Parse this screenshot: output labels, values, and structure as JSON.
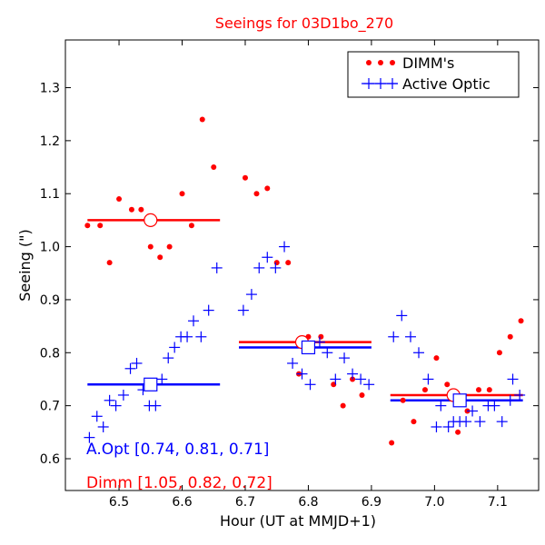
{
  "chart_data": {
    "type": "scatter",
    "title": "Seeings for 03D1bo_270",
    "xlabel": "Hour (UT at MMJD+1)",
    "ylabel": "Seeing (\")",
    "xlim": [
      6.415,
      7.165
    ],
    "ylim": [
      0.54,
      1.39
    ],
    "xticks": [
      6.5,
      6.6,
      6.7,
      6.8,
      6.9,
      7.0,
      7.1
    ],
    "xtick_labels": [
      "6.5",
      "6.6",
      "6.7",
      "6.8",
      "6.9",
      "7.0",
      "7.1"
    ],
    "yticks": [
      0.6,
      0.7,
      0.8,
      0.9,
      1.0,
      1.1,
      1.2,
      1.3
    ],
    "ytick_labels": [
      "0.6",
      "0.7",
      "0.8",
      "0.9",
      "1.0",
      "1.1",
      "1.2",
      "1.3"
    ],
    "legend": {
      "position": "top-right",
      "entries": [
        {
          "label": "DIMM's",
          "color": "#ff0000",
          "marker": "dot"
        },
        {
          "label": "Active Optic",
          "color": "#0000ff",
          "marker": "plus"
        }
      ]
    },
    "series": [
      {
        "name": "DIMM's",
        "color": "#ff0000",
        "marker": "dot",
        "points": [
          [
            6.45,
            1.04
          ],
          [
            6.47,
            1.04
          ],
          [
            6.485,
            0.97
          ],
          [
            6.5,
            1.09
          ],
          [
            6.52,
            1.07
          ],
          [
            6.535,
            1.07
          ],
          [
            6.55,
            1.0
          ],
          [
            6.565,
            0.98
          ],
          [
            6.58,
            1.0
          ],
          [
            6.6,
            1.1
          ],
          [
            6.615,
            1.04
          ],
          [
            6.632,
            1.24
          ],
          [
            6.65,
            1.15
          ],
          [
            6.7,
            1.13
          ],
          [
            6.718,
            1.1
          ],
          [
            6.735,
            1.11
          ],
          [
            6.75,
            0.97
          ],
          [
            6.768,
            0.97
          ],
          [
            6.785,
            0.76
          ],
          [
            6.8,
            0.83
          ],
          [
            6.82,
            0.83
          ],
          [
            6.84,
            0.74
          ],
          [
            6.855,
            0.7
          ],
          [
            6.87,
            0.75
          ],
          [
            6.885,
            0.72
          ],
          [
            6.932,
            0.63
          ],
          [
            6.95,
            0.71
          ],
          [
            6.967,
            0.67
          ],
          [
            6.985,
            0.73
          ],
          [
            7.003,
            0.79
          ],
          [
            7.02,
            0.74
          ],
          [
            7.037,
            0.65
          ],
          [
            7.052,
            0.69
          ],
          [
            7.07,
            0.73
          ],
          [
            7.087,
            0.73
          ],
          [
            7.103,
            0.8
          ],
          [
            7.12,
            0.83
          ],
          [
            7.137,
            0.86
          ]
        ]
      },
      {
        "name": "Active Optic",
        "color": "#0000ff",
        "marker": "plus",
        "points": [
          [
            6.453,
            0.64
          ],
          [
            6.465,
            0.68
          ],
          [
            6.475,
            0.66
          ],
          [
            6.485,
            0.71
          ],
          [
            6.495,
            0.7
          ],
          [
            6.507,
            0.72
          ],
          [
            6.518,
            0.77
          ],
          [
            6.528,
            0.78
          ],
          [
            6.538,
            0.73
          ],
          [
            6.548,
            0.7
          ],
          [
            6.558,
            0.7
          ],
          [
            6.568,
            0.75
          ],
          [
            6.578,
            0.79
          ],
          [
            6.588,
            0.81
          ],
          [
            6.598,
            0.83
          ],
          [
            6.608,
            0.83
          ],
          [
            6.618,
            0.86
          ],
          [
            6.63,
            0.83
          ],
          [
            6.642,
            0.88
          ],
          [
            6.655,
            0.96
          ],
          [
            6.697,
            0.88
          ],
          [
            6.71,
            0.91
          ],
          [
            6.722,
            0.96
          ],
          [
            6.735,
            0.98
          ],
          [
            6.748,
            0.96
          ],
          [
            6.762,
            1.0
          ],
          [
            6.775,
            0.78
          ],
          [
            6.79,
            0.76
          ],
          [
            6.803,
            0.74
          ],
          [
            6.818,
            0.82
          ],
          [
            6.83,
            0.8
          ],
          [
            6.843,
            0.75
          ],
          [
            6.857,
            0.79
          ],
          [
            6.87,
            0.76
          ],
          [
            6.883,
            0.75
          ],
          [
            6.896,
            0.74
          ],
          [
            6.935,
            0.83
          ],
          [
            6.948,
            0.87
          ],
          [
            6.962,
            0.83
          ],
          [
            6.975,
            0.8
          ],
          [
            6.99,
            0.75
          ],
          [
            7.003,
            0.66
          ],
          [
            7.01,
            0.7
          ],
          [
            7.022,
            0.66
          ],
          [
            7.03,
            0.67
          ],
          [
            7.04,
            0.67
          ],
          [
            7.05,
            0.67
          ],
          [
            7.06,
            0.69
          ],
          [
            7.072,
            0.67
          ],
          [
            7.085,
            0.7
          ],
          [
            7.095,
            0.7
          ],
          [
            7.107,
            0.67
          ],
          [
            7.12,
            0.71
          ],
          [
            7.124,
            0.75
          ],
          [
            7.135,
            0.72
          ]
        ]
      }
    ],
    "medians": {
      "dimm": {
        "color": "#ff0000",
        "segments": [
          {
            "x0": 6.45,
            "x1": 6.66,
            "y": 1.05,
            "mx": 6.55
          },
          {
            "x0": 6.69,
            "x1": 6.9,
            "y": 0.82,
            "mx": 6.79
          },
          {
            "x0": 6.93,
            "x1": 7.14,
            "y": 0.72,
            "mx": 7.03
          }
        ]
      },
      "aopt": {
        "color": "#0000ff",
        "segments": [
          {
            "x0": 6.45,
            "x1": 6.66,
            "y": 0.74,
            "mx": 6.55
          },
          {
            "x0": 6.69,
            "x1": 6.9,
            "y": 0.81,
            "mx": 6.8
          },
          {
            "x0": 6.93,
            "x1": 7.14,
            "y": 0.71,
            "mx": 7.04
          }
        ]
      }
    },
    "annotations": [
      {
        "text": "A.Opt [0.74, 0.81, 0.71]",
        "color": "#0000ff"
      },
      {
        "text": "Dimm [1.05, 0.82, 0.72]",
        "color": "#ff0000"
      }
    ]
  }
}
